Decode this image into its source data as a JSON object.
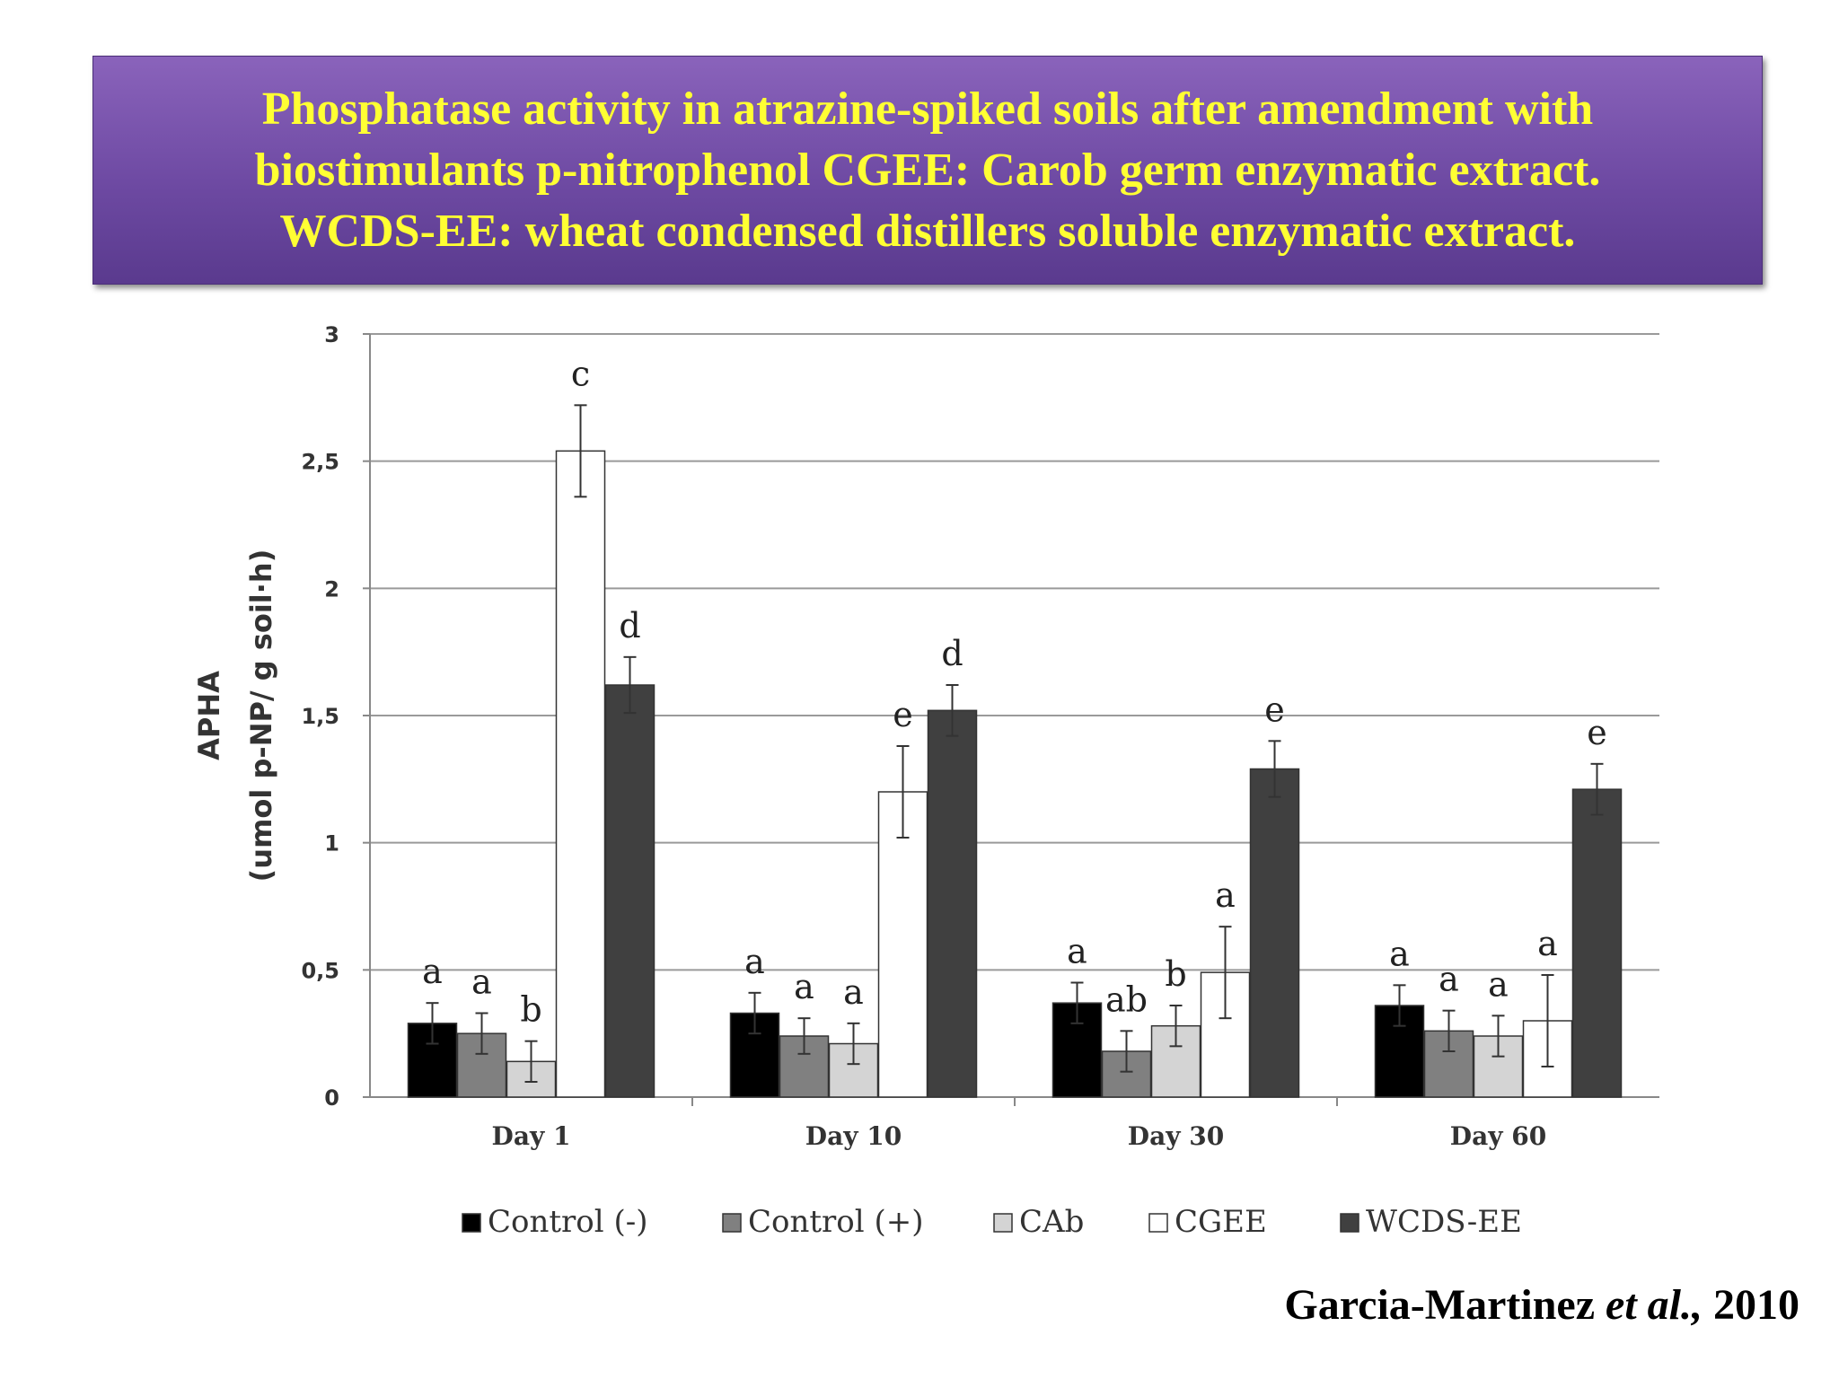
{
  "title": {
    "lines": [
      "Phosphatase activity in atrazine-spiked soils after amendment with",
      "biostimulants p-nitrophenol CGEE: Carob germ enzymatic extract.",
      "WCDS-EE: wheat condensed distillers soluble enzymatic extract."
    ]
  },
  "citation": {
    "author": "Garcia-Martinez",
    "etal": "et al.,",
    "year": "2010"
  },
  "chart_data": {
    "type": "bar",
    "ylabel_line1": "APHA",
    "ylabel_line2": "(umol p-NP/ g soil·h)",
    "ylim": [
      0,
      3
    ],
    "yticks": [
      {
        "v": 0,
        "label": "0"
      },
      {
        "v": 0.5,
        "label": "0,5"
      },
      {
        "v": 1,
        "label": "1"
      },
      {
        "v": 1.5,
        "label": "1,5"
      },
      {
        "v": 2,
        "label": "2"
      },
      {
        "v": 2.5,
        "label": "2,5"
      },
      {
        "v": 3,
        "label": "3"
      }
    ],
    "grid": true,
    "legend_position": "bottom",
    "categories": [
      "Day 1",
      "Day 10",
      "Day 30",
      "Day 60"
    ],
    "series": [
      {
        "name": "Control (-)",
        "color": "#000000",
        "values": [
          0.29,
          0.33,
          0.37,
          0.36
        ],
        "errors": [
          0.08,
          0.08,
          0.08,
          0.08
        ],
        "letters": [
          "a",
          "a",
          "a",
          "a"
        ]
      },
      {
        "name": "Control (+)",
        "color": "#808080",
        "values": [
          0.25,
          0.24,
          0.18,
          0.26
        ],
        "errors": [
          0.08,
          0.07,
          0.08,
          0.08
        ],
        "letters": [
          "a",
          "a",
          "ab",
          "a"
        ]
      },
      {
        "name": "CAb",
        "color": "#d4d4d4",
        "values": [
          0.14,
          0.21,
          0.28,
          0.24
        ],
        "errors": [
          0.08,
          0.08,
          0.08,
          0.08
        ],
        "letters": [
          "b",
          "a",
          "b",
          "a"
        ]
      },
      {
        "name": "CGEE",
        "color": "#ffffff",
        "values": [
          2.54,
          1.2,
          0.49,
          0.3
        ],
        "errors": [
          0.18,
          0.18,
          0.18,
          0.18
        ],
        "letters": [
          "c",
          "e",
          "a",
          "a"
        ]
      },
      {
        "name": "WCDS-EE",
        "color": "#404040",
        "values": [
          1.62,
          1.52,
          1.29,
          1.21
        ],
        "errors": [
          0.11,
          0.1,
          0.11,
          0.1
        ],
        "letters": [
          "d",
          "d",
          "e",
          "e"
        ]
      }
    ]
  }
}
